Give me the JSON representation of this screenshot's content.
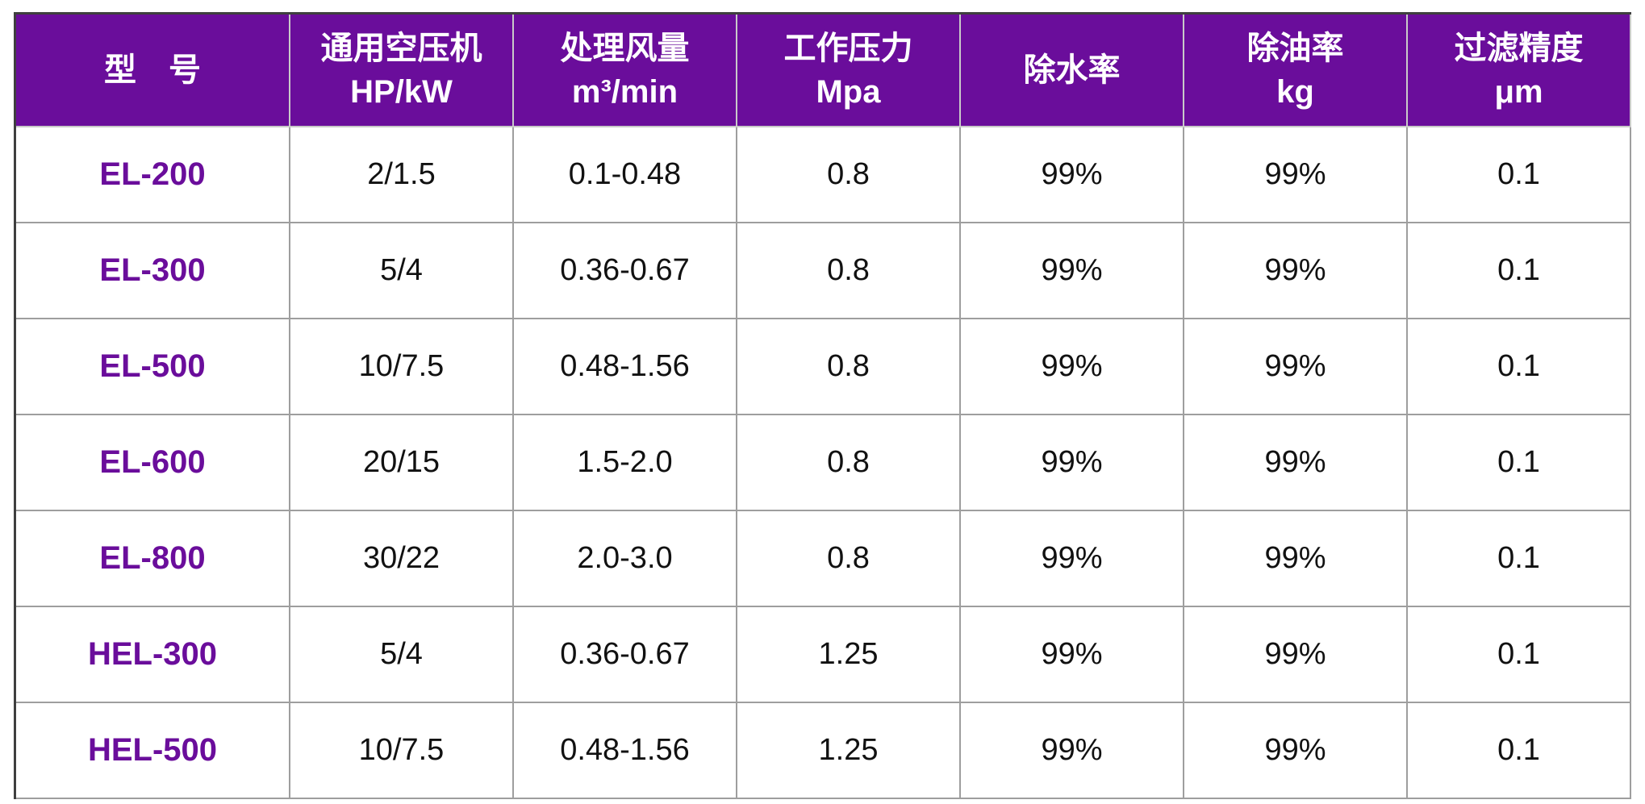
{
  "theme": {
    "header_bg": "#6a0d9b",
    "header_text": "#ffffff",
    "model_text": "#6a0d9b",
    "cell_text": "#111111",
    "inner_border": "#9e9e9e",
    "outer_border_dark": "#3f3f3f",
    "outer_border_light": "#ababab"
  },
  "table": {
    "columns": [
      {
        "id": "model",
        "label": "型　号",
        "unit": ""
      },
      {
        "id": "compressor",
        "label": "通用空压机",
        "unit": "HP/kW"
      },
      {
        "id": "flow",
        "label": "处理风量",
        "unit": "m³/min"
      },
      {
        "id": "pressure",
        "label": "工作压力",
        "unit": "Mpa"
      },
      {
        "id": "water",
        "label": "除水率",
        "unit": ""
      },
      {
        "id": "oil",
        "label": "除油率",
        "unit": "kg"
      },
      {
        "id": "filtration",
        "label": "过滤精度",
        "unit": "μm"
      }
    ],
    "rows": [
      [
        "EL-200",
        "2/1.5",
        "0.1-0.48",
        "0.8",
        "99%",
        "99%",
        "0.1"
      ],
      [
        "EL-300",
        "5/4",
        "0.36-0.67",
        "0.8",
        "99%",
        "99%",
        "0.1"
      ],
      [
        "EL-500",
        "10/7.5",
        "0.48-1.56",
        "0.8",
        "99%",
        "99%",
        "0.1"
      ],
      [
        "EL-600",
        "20/15",
        "1.5-2.0",
        "0.8",
        "99%",
        "99%",
        "0.1"
      ],
      [
        "EL-800",
        "30/22",
        "2.0-3.0",
        "0.8",
        "99%",
        "99%",
        "0.1"
      ],
      [
        "HEL-300",
        "5/4",
        "0.36-0.67",
        "1.25",
        "99%",
        "99%",
        "0.1"
      ],
      [
        "HEL-500",
        "10/7.5",
        "0.48-1.56",
        "1.25",
        "99%",
        "99%",
        "0.1"
      ]
    ]
  }
}
